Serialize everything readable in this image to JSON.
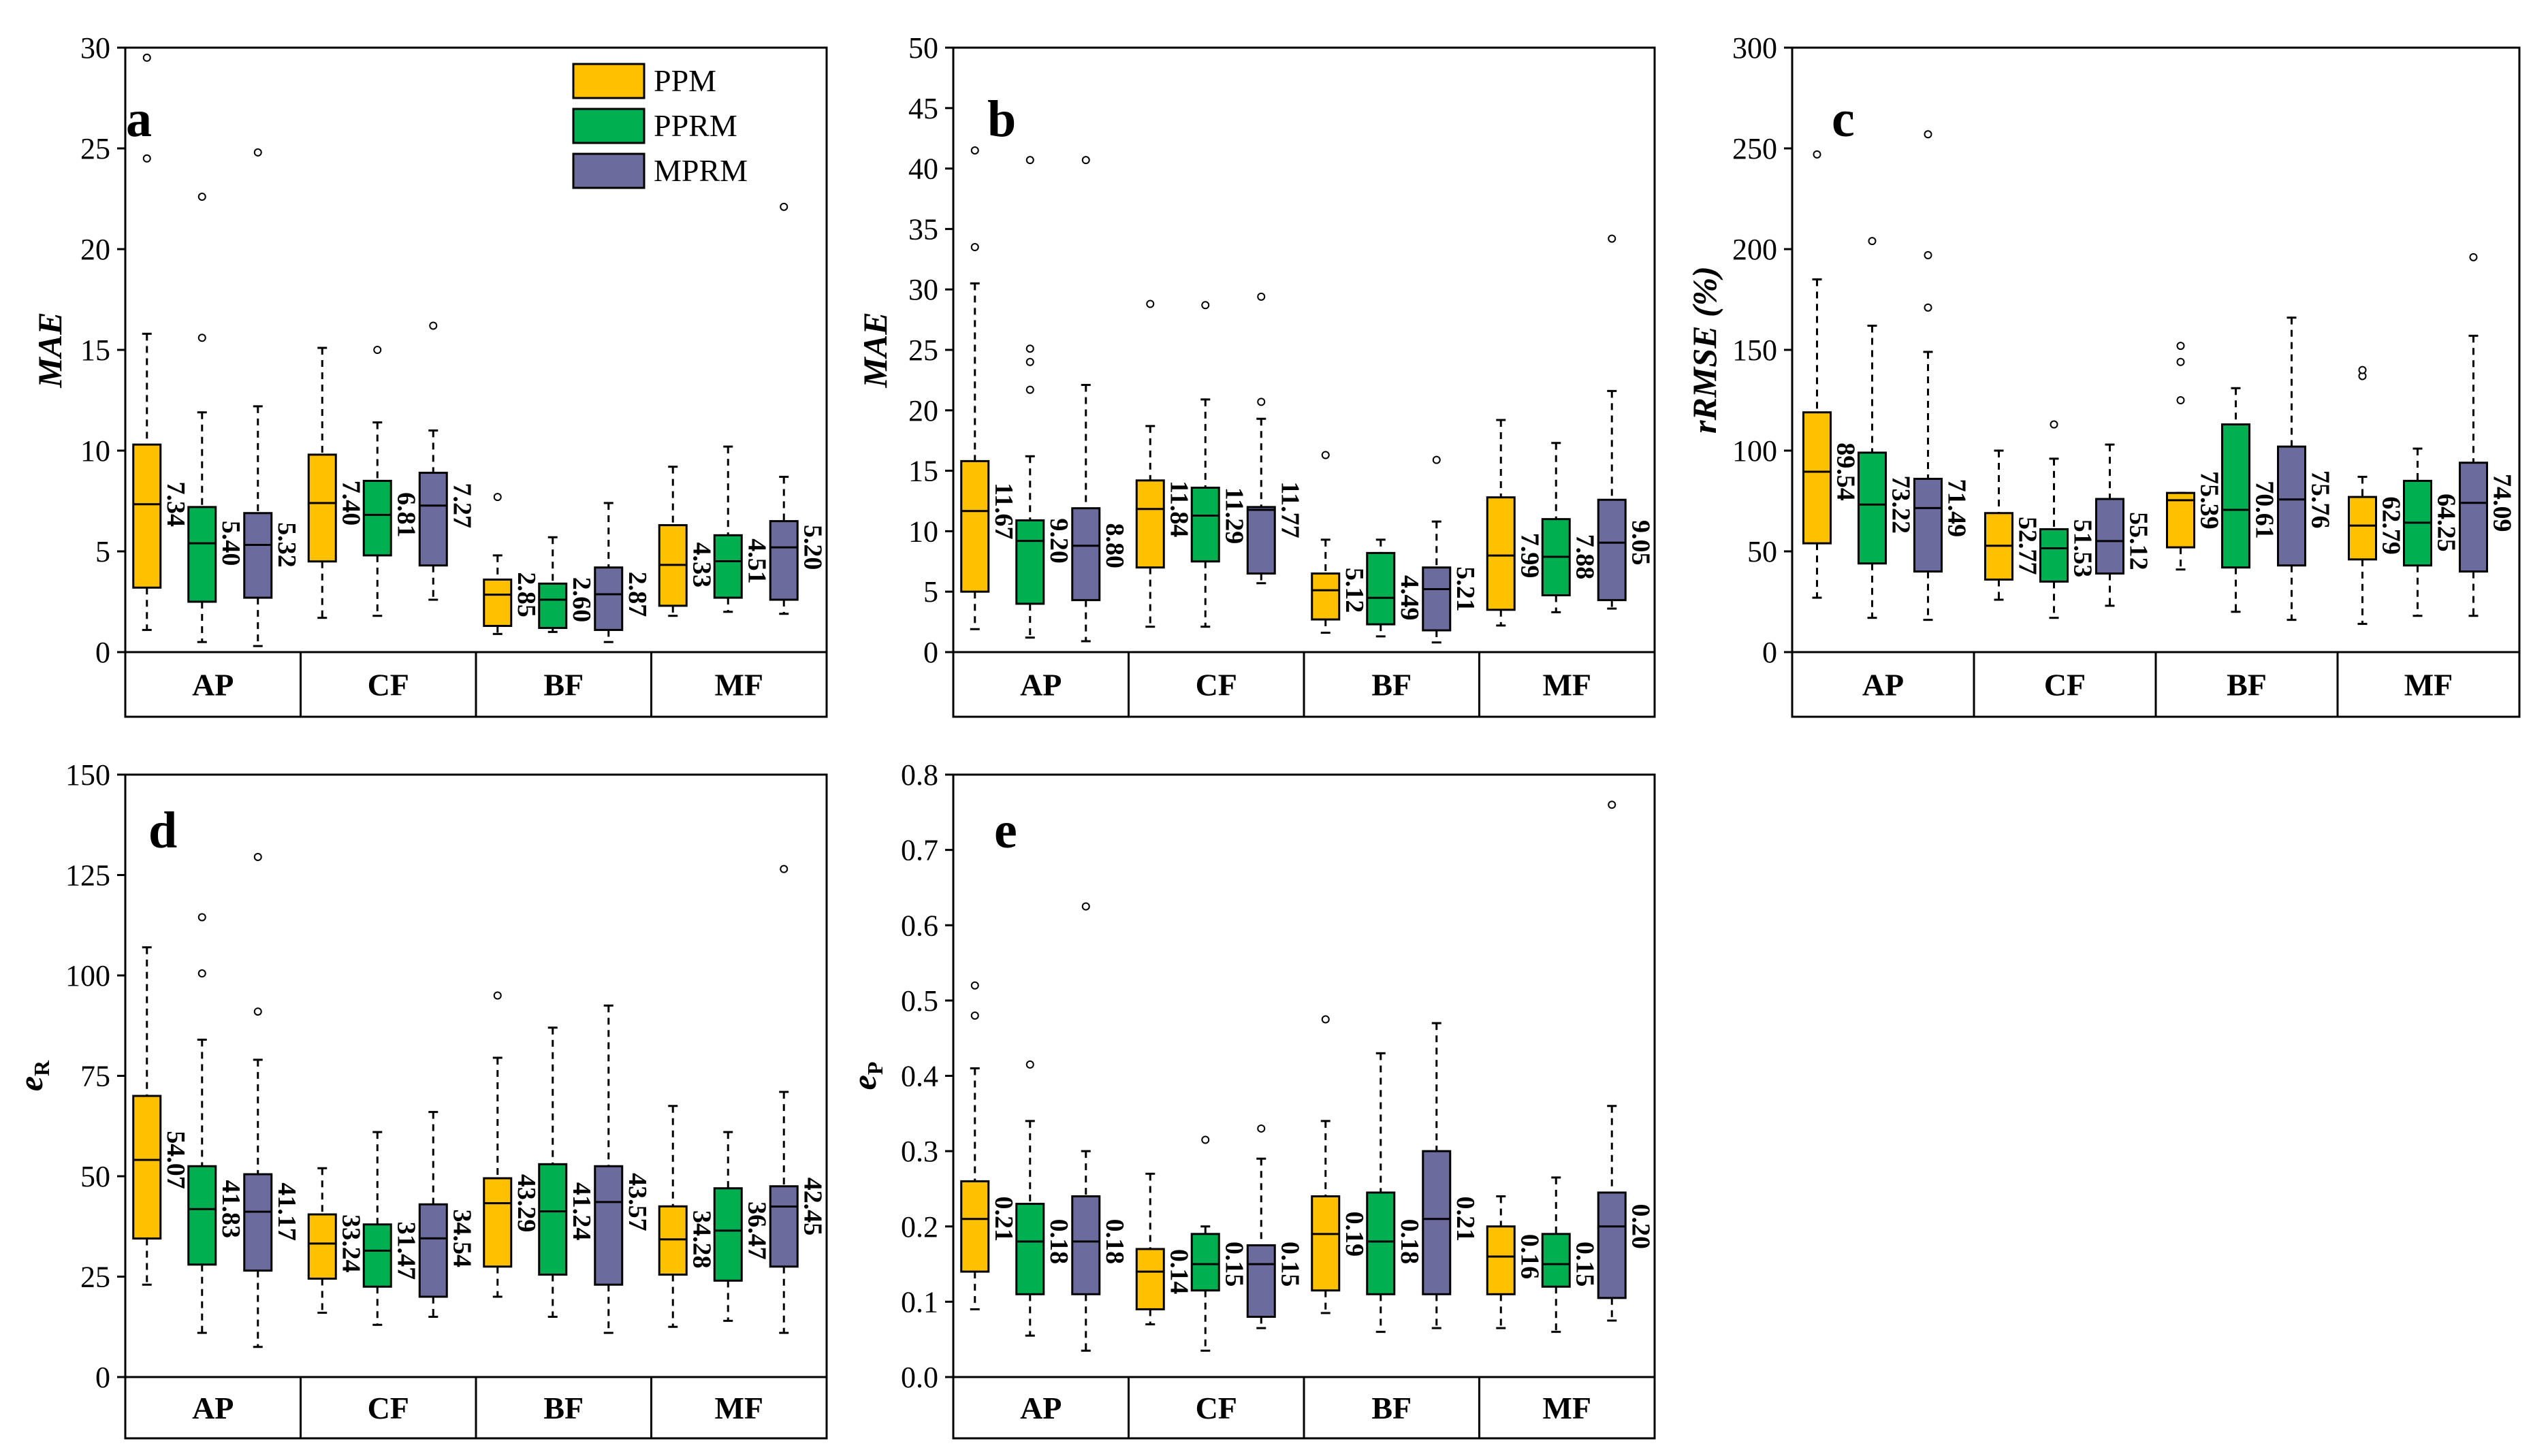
{
  "colors": {
    "PPM": "#FFC000",
    "PPRM": "#00B050",
    "MPRM": "#6B6B9D"
  },
  "legend": [
    "PPM",
    "PPRM",
    "MPRM"
  ],
  "groups": [
    "AP",
    "CF",
    "BF",
    "MF"
  ],
  "chart_data": [
    {
      "type": "box",
      "panel": "a",
      "ylabel": "MAE",
      "ylim": [
        0,
        30
      ],
      "yticks": [
        "0",
        "5",
        "10",
        "15",
        "20",
        "25",
        "30"
      ],
      "series": [
        {
          "name": "PPM",
          "boxes": [
            {
              "group": "AP",
              "min": 1.1,
              "q1": 3.2,
              "median": 7.34,
              "q3": 10.3,
              "max": 15.8,
              "outliers": [
                24.5,
                29.5
              ],
              "label": "7.34"
            },
            {
              "group": "CF",
              "min": 1.7,
              "q1": 4.5,
              "median": 7.4,
              "q3": 9.8,
              "max": 15.1,
              "outliers": [],
              "label": "7.40"
            },
            {
              "group": "BF",
              "min": 0.9,
              "q1": 1.3,
              "median": 2.85,
              "q3": 3.6,
              "max": 4.8,
              "outliers": [
                7.7
              ],
              "label": "2.85"
            },
            {
              "group": "MF",
              "min": 1.8,
              "q1": 2.3,
              "median": 4.33,
              "q3": 6.3,
              "max": 9.2,
              "outliers": [],
              "label": "4.33"
            }
          ]
        },
        {
          "name": "PPRM",
          "boxes": [
            {
              "group": "AP",
              "min": 0.5,
              "q1": 2.5,
              "median": 5.4,
              "q3": 7.2,
              "max": 11.9,
              "outliers": [
                15.6,
                22.6
              ],
              "label": "5.40"
            },
            {
              "group": "CF",
              "min": 1.8,
              "q1": 4.8,
              "median": 6.81,
              "q3": 8.5,
              "max": 11.4,
              "outliers": [
                15.0
              ],
              "label": "6.81"
            },
            {
              "group": "BF",
              "min": 1.0,
              "q1": 1.2,
              "median": 2.6,
              "q3": 3.4,
              "max": 5.7,
              "outliers": [],
              "label": "2.60"
            },
            {
              "group": "MF",
              "min": 2.0,
              "q1": 2.7,
              "median": 4.51,
              "q3": 5.8,
              "max": 10.2,
              "outliers": [],
              "label": "4.51"
            }
          ]
        },
        {
          "name": "MPRM",
          "boxes": [
            {
              "group": "AP",
              "min": 0.3,
              "q1": 2.7,
              "median": 5.32,
              "q3": 6.9,
              "max": 12.2,
              "outliers": [
                24.8
              ],
              "label": "5.32"
            },
            {
              "group": "CF",
              "min": 2.6,
              "q1": 4.3,
              "median": 7.27,
              "q3": 8.9,
              "max": 11.0,
              "outliers": [
                16.2
              ],
              "label": "7.27"
            },
            {
              "group": "BF",
              "min": 0.5,
              "q1": 1.1,
              "median": 2.87,
              "q3": 4.2,
              "max": 7.4,
              "outliers": [],
              "label": "2.87"
            },
            {
              "group": "MF",
              "min": 1.9,
              "q1": 2.6,
              "median": 5.2,
              "q3": 6.5,
              "max": 8.7,
              "outliers": [
                22.1
              ],
              "label": "5.20"
            }
          ]
        }
      ]
    },
    {
      "type": "box",
      "panel": "b",
      "ylabel": "MAE",
      "ylim": [
        0,
        50
      ],
      "yticks": [
        "0",
        "5",
        "10",
        "15",
        "20",
        "25",
        "30",
        "35",
        "40",
        "45",
        "50"
      ],
      "series": [
        {
          "name": "PPM",
          "boxes": [
            {
              "group": "AP",
              "min": 1.9,
              "q1": 5.0,
              "median": 11.67,
              "q3": 15.8,
              "max": 30.5,
              "outliers": [
                33.5,
                41.5
              ],
              "label": "11.67"
            },
            {
              "group": "CF",
              "min": 2.1,
              "q1": 7.0,
              "median": 11.84,
              "q3": 14.2,
              "max": 18.7,
              "outliers": [
                28.8
              ],
              "label": "11.84"
            },
            {
              "group": "BF",
              "min": 1.6,
              "q1": 2.7,
              "median": 5.12,
              "q3": 6.5,
              "max": 9.3,
              "outliers": [
                16.3
              ],
              "label": "5.12"
            },
            {
              "group": "MF",
              "min": 2.2,
              "q1": 3.5,
              "median": 7.99,
              "q3": 12.8,
              "max": 19.2,
              "outliers": [],
              "label": "7.99"
            }
          ]
        },
        {
          "name": "PPRM",
          "boxes": [
            {
              "group": "AP",
              "min": 1.2,
              "q1": 4.0,
              "median": 9.2,
              "q3": 10.9,
              "max": 16.2,
              "outliers": [
                21.7,
                24.0,
                25.1,
                40.7
              ],
              "label": "9.20"
            },
            {
              "group": "CF",
              "min": 2.1,
              "q1": 7.5,
              "median": 11.29,
              "q3": 13.6,
              "max": 20.9,
              "outliers": [
                28.7
              ],
              "label": "11.29"
            },
            {
              "group": "BF",
              "min": 1.3,
              "q1": 2.3,
              "median": 4.49,
              "q3": 8.2,
              "max": 9.3,
              "outliers": [],
              "label": "4.49"
            },
            {
              "group": "MF",
              "min": 3.3,
              "q1": 4.7,
              "median": 7.88,
              "q3": 11.0,
              "max": 17.3,
              "outliers": [],
              "label": "7.88"
            }
          ]
        },
        {
          "name": "MPRM",
          "boxes": [
            {
              "group": "AP",
              "min": 0.9,
              "q1": 4.3,
              "median": 8.8,
              "q3": 11.9,
              "max": 22.1,
              "outliers": [
                40.7
              ],
              "label": "8.80"
            },
            {
              "group": "CF",
              "min": 5.7,
              "q1": 6.5,
              "median": 11.77,
              "q3": 12.0,
              "max": 19.3,
              "outliers": [
                20.7,
                29.4
              ],
              "label": "11.77"
            },
            {
              "group": "BF",
              "min": 0.8,
              "q1": 1.8,
              "median": 5.21,
              "q3": 7.0,
              "max": 10.8,
              "outliers": [
                15.9
              ],
              "label": "5.21"
            },
            {
              "group": "MF",
              "min": 3.6,
              "q1": 4.3,
              "median": 9.05,
              "q3": 12.6,
              "max": 21.6,
              "outliers": [
                34.2
              ],
              "label": "9.05"
            }
          ]
        }
      ]
    },
    {
      "type": "box",
      "panel": "c",
      "ylabel": "rRMSE (%)",
      "ylim": [
        0,
        300
      ],
      "yticks": [
        "0",
        "50",
        "100",
        "150",
        "200",
        "250",
        "300"
      ],
      "series": [
        {
          "name": "PPM",
          "boxes": [
            {
              "group": "AP",
              "min": 27,
              "q1": 54,
              "median": 89.54,
              "q3": 119,
              "max": 185,
              "outliers": [
                247
              ],
              "label": "89.54"
            },
            {
              "group": "CF",
              "min": 26,
              "q1": 36,
              "median": 52.77,
              "q3": 69,
              "max": 100,
              "outliers": [],
              "label": "52.77"
            },
            {
              "group": "BF",
              "min": 41,
              "q1": 52,
              "median": 75.39,
              "q3": 79,
              "max": 79,
              "outliers": [
                125,
                144,
                152
              ],
              "label": "75.39"
            },
            {
              "group": "MF",
              "min": 14,
              "q1": 46,
              "median": 62.79,
              "q3": 77,
              "max": 87,
              "outliers": [
                137,
                140
              ],
              "label": "62.79"
            }
          ]
        },
        {
          "name": "PPRM",
          "boxes": [
            {
              "group": "AP",
              "min": 17,
              "q1": 44,
              "median": 73.22,
              "q3": 99,
              "max": 162,
              "outliers": [
                204
              ],
              "label": "73.22"
            },
            {
              "group": "CF",
              "min": 17,
              "q1": 35,
              "median": 51.53,
              "q3": 61,
              "max": 96,
              "outliers": [
                113
              ],
              "label": "51.53"
            },
            {
              "group": "BF",
              "min": 20,
              "q1": 42,
              "median": 70.61,
              "q3": 113,
              "max": 131,
              "outliers": [],
              "label": "70.61"
            },
            {
              "group": "MF",
              "min": 18,
              "q1": 43,
              "median": 64.25,
              "q3": 85,
              "max": 101,
              "outliers": [],
              "label": "64.25"
            }
          ]
        },
        {
          "name": "MPRM",
          "boxes": [
            {
              "group": "AP",
              "min": 16,
              "q1": 40,
              "median": 71.49,
              "q3": 86,
              "max": 149,
              "outliers": [
                171,
                197,
                257
              ],
              "label": "71.49"
            },
            {
              "group": "CF",
              "min": 23,
              "q1": 39,
              "median": 55.12,
              "q3": 76,
              "max": 103,
              "outliers": [],
              "label": "55.12"
            },
            {
              "group": "BF",
              "min": 16,
              "q1": 43,
              "median": 75.76,
              "q3": 102,
              "max": 166,
              "outliers": [],
              "label": "75.76"
            },
            {
              "group": "MF",
              "min": 18,
              "q1": 40,
              "median": 74.09,
              "q3": 94,
              "max": 157,
              "outliers": [
                196
              ],
              "label": "74.09"
            }
          ]
        }
      ]
    },
    {
      "type": "box",
      "panel": "d",
      "ylabel": "eR",
      "ylabel_main": "e",
      "ylabel_sub": "R",
      "ylim": [
        0,
        150
      ],
      "yticks": [
        "0",
        "25",
        "50",
        "75",
        "100",
        "125",
        "150"
      ],
      "series": [
        {
          "name": "PPM",
          "boxes": [
            {
              "group": "AP",
              "min": 23,
              "q1": 34.5,
              "median": 54.07,
              "q3": 70,
              "max": 107,
              "outliers": [],
              "label": "54.07"
            },
            {
              "group": "CF",
              "min": 16,
              "q1": 24.5,
              "median": 33.24,
              "q3": 40.5,
              "max": 52,
              "outliers": [],
              "label": "33.24"
            },
            {
              "group": "BF",
              "min": 20,
              "q1": 27.5,
              "median": 43.29,
              "q3": 49.5,
              "max": 79.5,
              "outliers": [
                95
              ],
              "label": "43.29"
            },
            {
              "group": "MF",
              "min": 12.5,
              "q1": 25.5,
              "median": 34.28,
              "q3": 42.5,
              "max": 67.5,
              "outliers": [],
              "label": "34.28"
            }
          ]
        },
        {
          "name": "PPRM",
          "boxes": [
            {
              "group": "AP",
              "min": 11,
              "q1": 28,
              "median": 41.83,
              "q3": 52.5,
              "max": 84,
              "outliers": [
                100.5,
                114.5
              ],
              "label": "41.83"
            },
            {
              "group": "CF",
              "min": 13,
              "q1": 22.5,
              "median": 31.47,
              "q3": 38,
              "max": 61,
              "outliers": [],
              "label": "31.47"
            },
            {
              "group": "BF",
              "min": 15,
              "q1": 25.5,
              "median": 41.24,
              "q3": 53,
              "max": 87,
              "outliers": [],
              "label": "41.24"
            },
            {
              "group": "MF",
              "min": 14,
              "q1": 24,
              "median": 36.47,
              "q3": 47,
              "max": 61,
              "outliers": [],
              "label": "36.47"
            }
          ]
        },
        {
          "name": "MPRM",
          "boxes": [
            {
              "group": "AP",
              "min": 7.5,
              "q1": 26.5,
              "median": 41.17,
              "q3": 50.5,
              "max": 79,
              "outliers": [
                91,
                129.5
              ],
              "label": "41.17"
            },
            {
              "group": "CF",
              "min": 15,
              "q1": 20,
              "median": 34.54,
              "q3": 43,
              "max": 66,
              "outliers": [],
              "label": "34.54"
            },
            {
              "group": "BF",
              "min": 11,
              "q1": 23,
              "median": 43.57,
              "q3": 52.5,
              "max": 92.5,
              "outliers": [],
              "label": "43.57"
            },
            {
              "group": "MF",
              "min": 11,
              "q1": 27.5,
              "median": 42.45,
              "q3": 47.5,
              "max": 71,
              "outliers": [
                126.5
              ],
              "label": "42.45"
            }
          ]
        }
      ]
    },
    {
      "type": "box",
      "panel": "e",
      "ylabel": "eP",
      "ylabel_main": "e",
      "ylabel_sub": "P",
      "ylim": [
        0,
        0.8
      ],
      "yticks": [
        "0.0",
        "0.1",
        "0.2",
        "0.3",
        "0.4",
        "0.5",
        "0.6",
        "0.7",
        "0.8"
      ],
      "series": [
        {
          "name": "PPM",
          "boxes": [
            {
              "group": "AP",
              "min": 0.09,
              "q1": 0.14,
              "median": 0.21,
              "q3": 0.26,
              "max": 0.41,
              "outliers": [
                0.48,
                0.52
              ],
              "label": "0.21"
            },
            {
              "group": "CF",
              "min": 0.07,
              "q1": 0.09,
              "median": 0.14,
              "q3": 0.17,
              "max": 0.27,
              "outliers": [],
              "label": "0.14"
            },
            {
              "group": "BF",
              "min": 0.085,
              "q1": 0.115,
              "median": 0.19,
              "q3": 0.24,
              "max": 0.34,
              "outliers": [
                0.475
              ],
              "label": "0.19"
            },
            {
              "group": "MF",
              "min": 0.065,
              "q1": 0.11,
              "median": 0.16,
              "q3": 0.2,
              "max": 0.24,
              "outliers": [],
              "label": "0.16"
            }
          ]
        },
        {
          "name": "PPRM",
          "boxes": [
            {
              "group": "AP",
              "min": 0.055,
              "q1": 0.11,
              "median": 0.18,
              "q3": 0.23,
              "max": 0.34,
              "outliers": [
                0.415
              ],
              "label": "0.18"
            },
            {
              "group": "CF",
              "min": 0.035,
              "q1": 0.115,
              "median": 0.15,
              "q3": 0.19,
              "max": 0.2,
              "outliers": [
                0.315
              ],
              "label": "0.15"
            },
            {
              "group": "BF",
              "min": 0.06,
              "q1": 0.11,
              "median": 0.18,
              "q3": 0.245,
              "max": 0.43,
              "outliers": [],
              "label": "0.18"
            },
            {
              "group": "MF",
              "min": 0.06,
              "q1": 0.12,
              "median": 0.15,
              "q3": 0.19,
              "max": 0.265,
              "outliers": [],
              "label": "0.15"
            }
          ]
        },
        {
          "name": "MPRM",
          "boxes": [
            {
              "group": "AP",
              "min": 0.035,
              "q1": 0.11,
              "median": 0.18,
              "q3": 0.24,
              "max": 0.3,
              "outliers": [
                0.625
              ],
              "label": "0.18"
            },
            {
              "group": "CF",
              "min": 0.065,
              "q1": 0.08,
              "median": 0.15,
              "q3": 0.175,
              "max": 0.29,
              "outliers": [
                0.33
              ],
              "label": "0.15"
            },
            {
              "group": "BF",
              "min": 0.065,
              "q1": 0.11,
              "median": 0.21,
              "q3": 0.3,
              "max": 0.47,
              "outliers": [],
              "label": "0.21"
            },
            {
              "group": "MF",
              "min": 0.075,
              "q1": 0.105,
              "median": 0.2,
              "q3": 0.245,
              "max": 0.36,
              "outliers": [
                0.76
              ],
              "label": "0.20"
            }
          ]
        }
      ]
    }
  ]
}
